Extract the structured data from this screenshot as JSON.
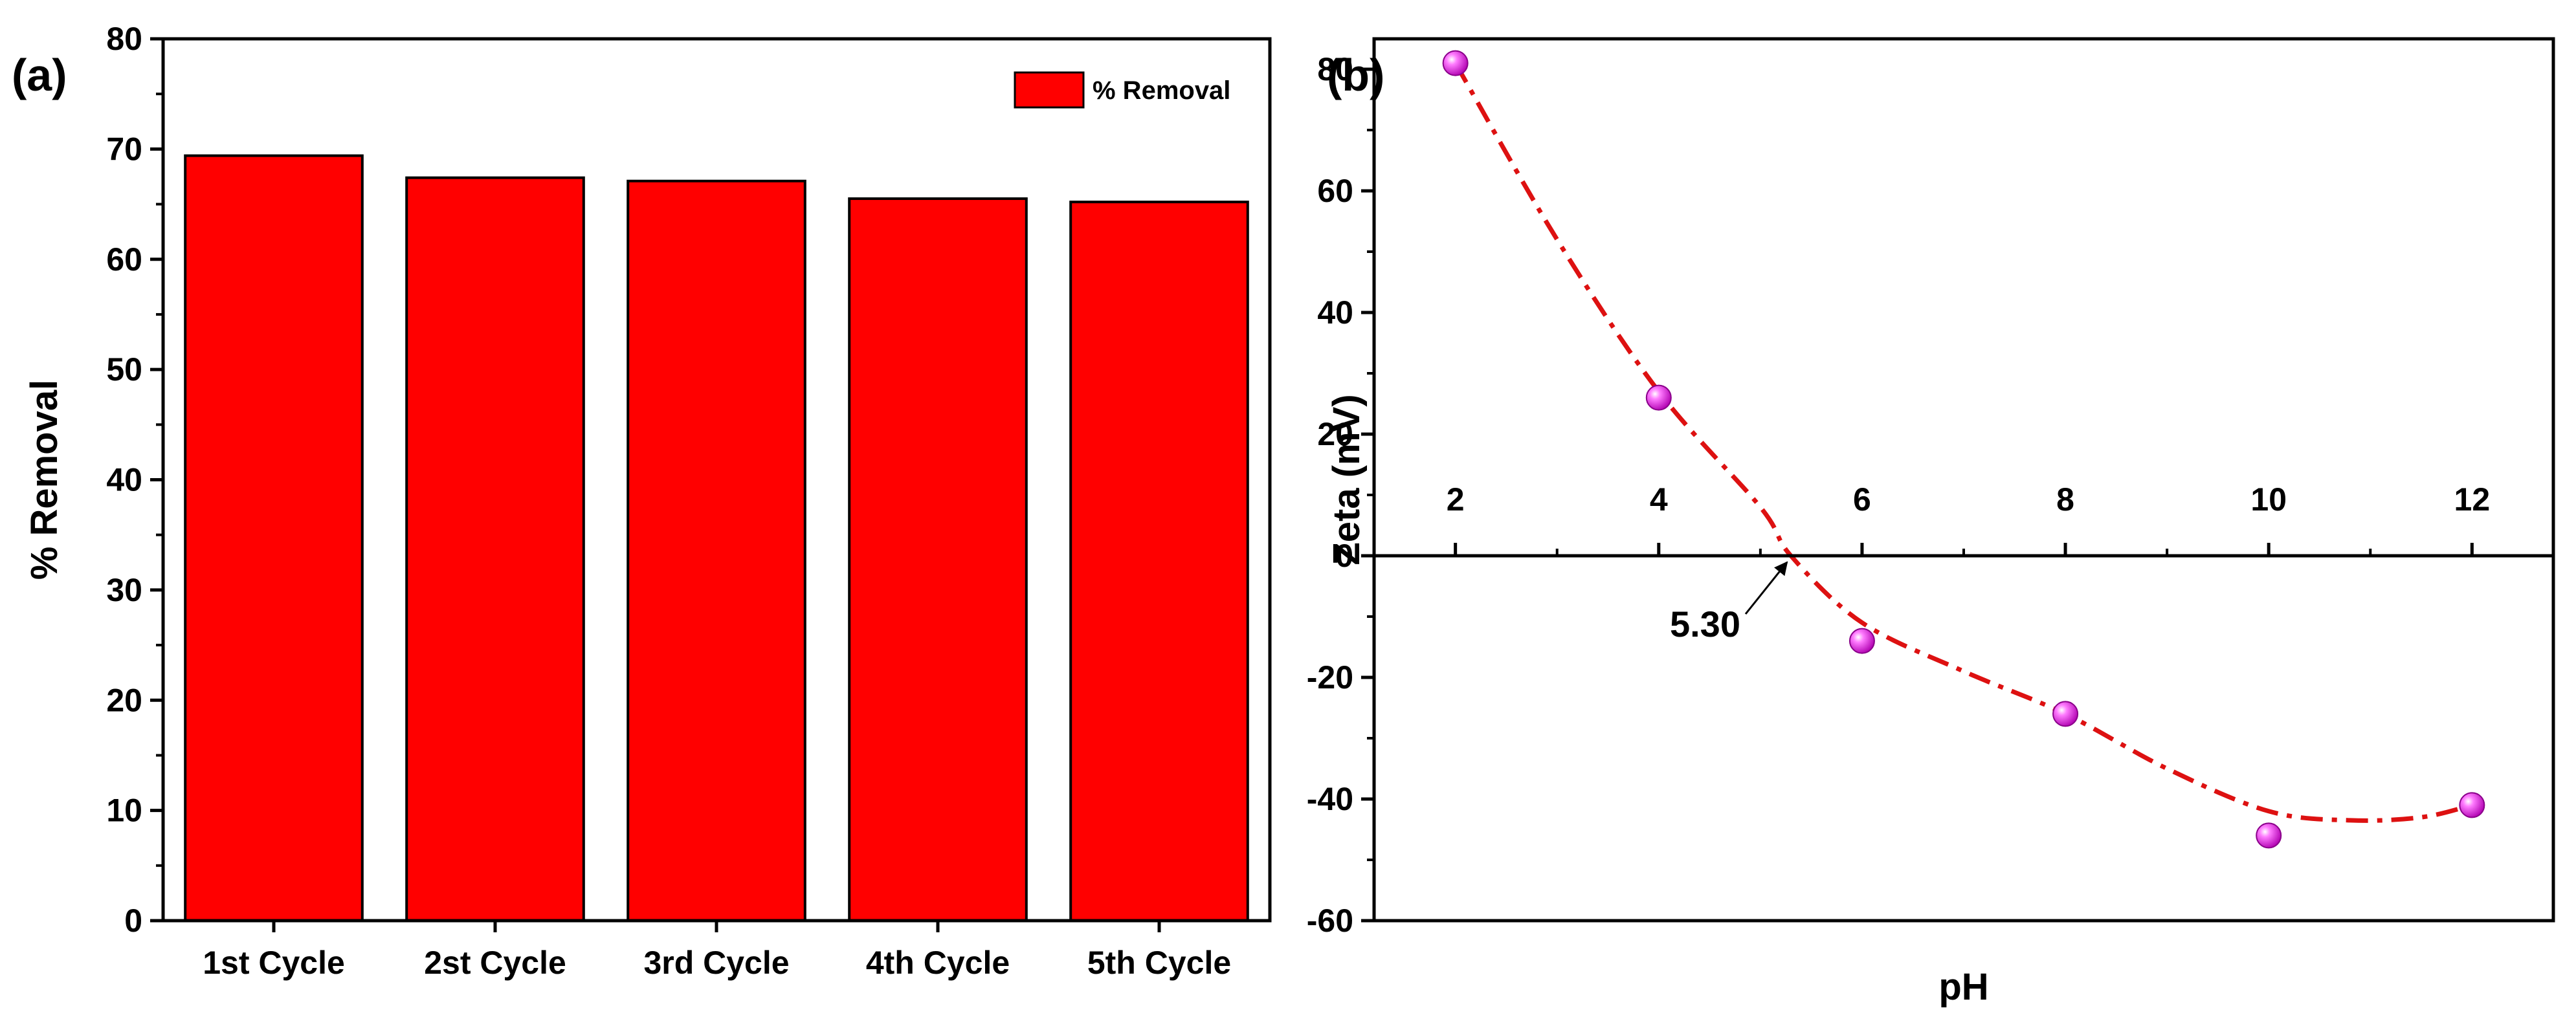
{
  "chart_data": [
    {
      "panel_label": "(a)",
      "type": "bar",
      "categories": [
        "1st Cycle",
        "2st Cycle",
        "3rd Cycle",
        "4th Cycle",
        "5th Cycle"
      ],
      "series": [
        {
          "name": "% Removal",
          "values": [
            69.4,
            67.4,
            67.1,
            65.5,
            65.2
          ]
        }
      ],
      "xlabel": "",
      "ylabel": "% Removal",
      "ylim": [
        0,
        80
      ],
      "yticks": [
        0,
        10,
        20,
        30,
        40,
        50,
        60,
        70,
        80
      ],
      "grid": false,
      "legend_position": "top-right",
      "colors": {
        "bar": "#ff0000",
        "bar_edge": "#000000"
      }
    },
    {
      "panel_label": "(b)",
      "type": "scatter",
      "points": {
        "x": [
          2,
          4,
          6,
          8,
          10,
          12
        ],
        "y": [
          81,
          26,
          -14,
          -26,
          -46,
          -41
        ]
      },
      "fit_curve": {
        "x": [
          2,
          3,
          4,
          5,
          5.3,
          6,
          7,
          8,
          9,
          10,
          10.8,
          11.5,
          12
        ],
        "y": [
          81,
          52,
          27,
          8,
          0,
          -11,
          -19,
          -26,
          -35,
          -42,
          -43.5,
          -43,
          -41
        ]
      },
      "xlabel": "pH",
      "ylabel": "Zeta (mV)",
      "xlim": [
        1.2,
        12.8
      ],
      "ylim": [
        -60,
        85
      ],
      "xticks": [
        2,
        4,
        6,
        8,
        10,
        12
      ],
      "yticks": [
        -60,
        -40,
        -20,
        0,
        20,
        40,
        60,
        80
      ],
      "grid": false,
      "annotation": {
        "text": "5.30",
        "x": 5.3,
        "y": 0
      },
      "colors": {
        "marker": "#ee22ee",
        "curve": "#dd1111"
      }
    }
  ]
}
